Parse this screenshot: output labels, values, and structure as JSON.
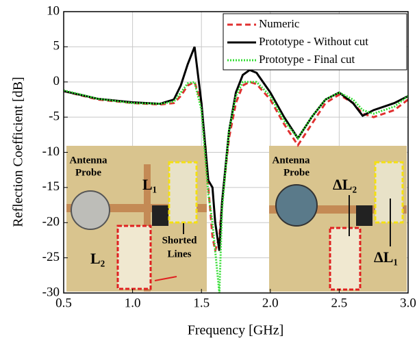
{
  "chart_data": {
    "type": "line",
    "x_label": "Frequency [GHz]",
    "y_label": "Reflection Coefficient [dB]",
    "x": [
      0.5,
      0.75,
      1.0,
      1.2,
      1.3,
      1.35,
      1.4,
      1.45,
      1.5,
      1.55,
      1.58,
      1.6,
      1.63,
      1.65,
      1.7,
      1.75,
      1.8,
      1.85,
      1.9,
      2.0,
      2.1,
      2.2,
      2.3,
      2.4,
      2.5,
      2.6,
      2.67,
      2.75,
      2.9,
      3.0
    ],
    "series": [
      {
        "name": "Numeric",
        "color": "#e03030",
        "linestyle": "dashed",
        "values": [
          -1.3,
          -2.5,
          -3,
          -3.2,
          -3,
          -2,
          -0.5,
          0,
          -3,
          -15,
          -22,
          -24,
          -22,
          -17,
          -8,
          -3,
          -0.5,
          0,
          -0.3,
          -2.5,
          -6,
          -9,
          -6,
          -3,
          -1.8,
          -3,
          -4.5,
          -5,
          -4,
          -2.5
        ]
      },
      {
        "name": "Prototype - Without cut",
        "color": "#000000",
        "linestyle": "solid",
        "values": [
          -1.3,
          -2.4,
          -2.9,
          -3.1,
          -2.5,
          -0.5,
          2.5,
          5,
          -3,
          -14,
          -15,
          -20,
          -24,
          -17,
          -7,
          -1.5,
          1,
          1.7,
          1.3,
          -1.5,
          -5,
          -8,
          -5,
          -2.5,
          -1.5,
          -3,
          -4.8,
          -4,
          -3,
          -2
        ]
      },
      {
        "name": "Prototype - Final cut",
        "color": "#33dd33",
        "linestyle": "dotted",
        "values": [
          -1.2,
          -2.4,
          -3,
          -3.1,
          -2.8,
          -1.5,
          -0.2,
          0,
          -4,
          -16,
          -20,
          -24,
          -30,
          -18,
          -7,
          -2,
          0,
          0,
          0,
          -2,
          -5.5,
          -8,
          -5,
          -2.5,
          -1.5,
          -2.5,
          -4,
          -4.5,
          -3.5,
          -2
        ]
      }
    ],
    "xlim": [
      0.5,
      3.0
    ],
    "ylim": [
      -30,
      10
    ],
    "xticks": [
      0.5,
      {
        "value": 1,
        "label": "1.0"
      },
      1.5,
      {
        "value": 2,
        "label": "2.0"
      },
      2.5,
      {
        "value": 3,
        "label": "3.0"
      }
    ],
    "yticks": [
      -30,
      -25,
      -20,
      -15,
      -10,
      -5,
      0,
      5,
      10
    ],
    "grid": true,
    "legend": "upper right",
    "annotations": [
      "Antenna",
      "Probe",
      "L₁",
      "Shorted",
      "Lines",
      "L₂",
      "Antenna",
      "Probe",
      "ΔL₂",
      "ΔL₁"
    ]
  }
}
